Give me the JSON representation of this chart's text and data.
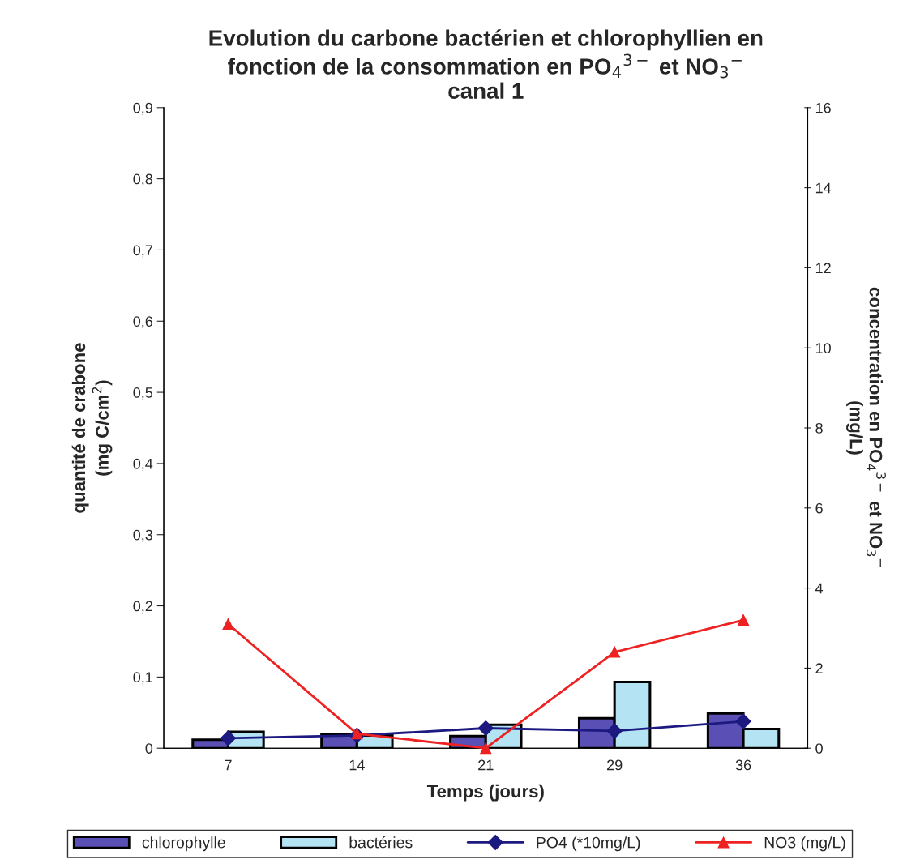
{
  "chart_data": {
    "type": "bar",
    "title": "Evolution du carbone bactérien et chlorophyllien en\nfonction de la consommation en PO$_{4}$$^{3−}$ et NO$_{3}$$^{−}$\ncanal 1",
    "xlabel": "Temps (jours)",
    "ylabel": "quantité de crabone\n(mg C/cm$^{2}$)",
    "y2label": "concentration en PO$_{4}$$^{3−}$ et NO$_{3}$$^{−}$\n(mg/L)",
    "categories": [
      "7",
      "14",
      "21",
      "29",
      "36"
    ],
    "series": [
      {
        "name": "chlorophylle",
        "color": "#5a4fb4",
        "values": [
          0.012,
          0.019,
          0.017,
          0.042,
          0.049
        ]
      },
      {
        "name": "bactéries",
        "color": "#b4e4f4",
        "values": [
          0.023,
          0.018,
          0.033,
          0.093,
          0.027
        ]
      },
      {
        "name": "PO4 (*10mg/L)",
        "type": "line",
        "axis": "y2",
        "color": "#1c1a80",
        "marker": "diamond",
        "values": [
          0.25,
          0.32,
          0.5,
          0.43,
          0.67
        ]
      },
      {
        "name": "NO3 (mg/L)",
        "type": "line",
        "axis": "y2",
        "color": "#ee2222",
        "marker": "triangle",
        "values": [
          3.1,
          0.36,
          0.0,
          2.4,
          3.2
        ]
      }
    ],
    "ylim": [
      0,
      0.9
    ],
    "yticks": [
      {
        "value": 0,
        "label": "0"
      },
      {
        "value": 0.1,
        "label": "0,1"
      },
      {
        "value": 0.2,
        "label": "0,2"
      },
      {
        "value": 0.3,
        "label": "0,3"
      },
      {
        "value": 0.4,
        "label": "0,4"
      },
      {
        "value": 0.5,
        "label": "0,5"
      },
      {
        "value": 0.6,
        "label": "0,6"
      },
      {
        "value": 0.7,
        "label": "0,7"
      },
      {
        "value": 0.8,
        "label": "0,8"
      },
      {
        "value": 0.9,
        "label": "0,9"
      }
    ],
    "y2lim": [
      0,
      16
    ],
    "y2ticks": [
      0,
      2,
      4,
      6,
      8,
      10,
      12,
      14,
      16
    ],
    "grid": false,
    "legend": "bottom"
  }
}
